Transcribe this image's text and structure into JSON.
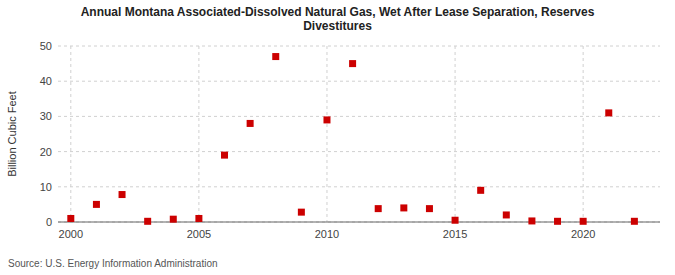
{
  "chart_data": {
    "type": "scatter",
    "title": "Annual Montana Associated-Dissolved Natural Gas, Wet After Lease Separation, Reserves\nDivestitures",
    "y_label": "Billion Cubic Feet",
    "source": "Source: U.S. Energy Information Administration",
    "x": [
      2000,
      2001,
      2002,
      2003,
      2004,
      2005,
      2006,
      2007,
      2008,
      2009,
      2010,
      2011,
      2012,
      2013,
      2014,
      2015,
      2016,
      2017,
      2018,
      2019,
      2020,
      2021,
      2022
    ],
    "values": [
      1.0,
      5.0,
      7.8,
      0.2,
      0.8,
      1.0,
      19.0,
      28.0,
      47.0,
      2.8,
      29.0,
      45.0,
      3.8,
      4.0,
      3.8,
      0.5,
      9.0,
      2.0,
      0.3,
      0.2,
      0.2,
      31.0,
      0.2
    ],
    "color": "#cc0000",
    "marker": "square",
    "xlim": [
      1999.5,
      2023.0
    ],
    "ylim": [
      0,
      50
    ],
    "xticks": [
      2000,
      2005,
      2010,
      2015,
      2020
    ],
    "yticks": [
      0,
      10,
      20,
      30,
      40,
      50
    ],
    "grid": true
  }
}
